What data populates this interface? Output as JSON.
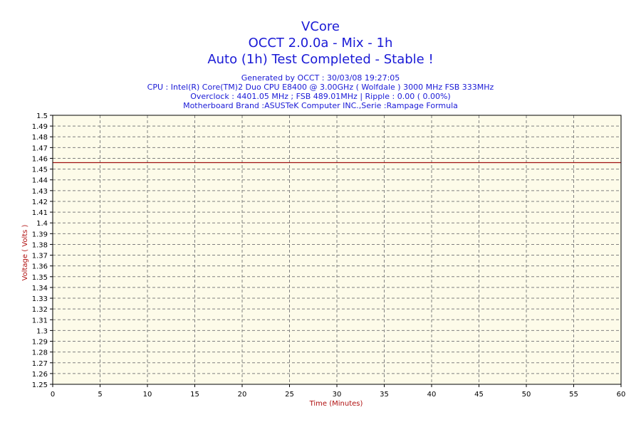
{
  "title_lines": [
    "VCore",
    "OCCT 2.0.0a - Mix - 1h",
    "Auto (1h) Test Completed - Stable !"
  ],
  "info_lines": [
    "Generated by OCCT : 30/03/08 19:27:05",
    "CPU : Intel(R) Core(TM)2 Duo CPU E8400 @ 3.00GHz ( Wolfdale ) 3000 MHz FSB 333MHz",
    "Overclock : 4401.05 MHz ; FSB 489.01MHz | Ripple : 0.00 ( 0.00%)",
    "Motherboard Brand :ASUSTeK Computer INC.,Serie :Rampage Formula"
  ],
  "chart_data": {
    "type": "line",
    "xlabel": "Time (Minutes)",
    "ylabel": "Voltage ( Volts )",
    "xlim": [
      0,
      60
    ],
    "ylim": [
      1.25,
      1.5
    ],
    "x_ticks": [
      "0",
      "5",
      "10",
      "15",
      "20",
      "25",
      "30",
      "35",
      "40",
      "45",
      "50",
      "55",
      "60"
    ],
    "y_ticks": [
      "1.5",
      "1.49",
      "1.48",
      "1.47",
      "1.46",
      "1.45",
      "1.44",
      "1.43",
      "1.42",
      "1.41",
      "1.4",
      "1.39",
      "1.38",
      "1.37",
      "1.36",
      "1.35",
      "1.34",
      "1.33",
      "1.32",
      "1.31",
      "1.3",
      "1.29",
      "1.28",
      "1.27",
      "1.26",
      "1.25"
    ],
    "grid": true,
    "series": [
      {
        "x": [
          0,
          60
        ],
        "y": [
          1.456,
          1.456
        ]
      }
    ],
    "colors": {
      "line": "#a01010",
      "plot_bg": "#fdfbe9",
      "grid": "#808080",
      "axis_text": "#000000",
      "title": "#1a1ad6",
      "axis_label": "#b01010"
    }
  }
}
